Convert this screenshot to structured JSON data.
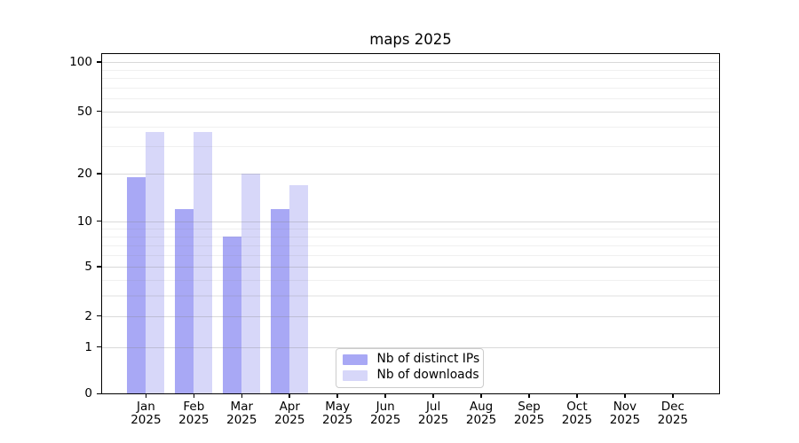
{
  "chart_data": {
    "type": "bar",
    "title": "maps 2025",
    "xlabel": "",
    "ylabel": "",
    "categories": [
      "Jan",
      "Feb",
      "Mar",
      "Apr",
      "May",
      "Jun",
      "Jul",
      "Aug",
      "Sep",
      "Oct",
      "Nov",
      "Dec"
    ],
    "x_tick_year": "2025",
    "series": [
      {
        "name": "Nb of distinct IPs",
        "color": "#a8a8f5",
        "values": [
          19,
          12,
          8,
          12,
          0,
          0,
          0,
          0,
          0,
          0,
          0,
          0
        ]
      },
      {
        "name": "Nb of downloads",
        "color": "#d7d7f9",
        "values": [
          37,
          37,
          20,
          17,
          0,
          0,
          0,
          0,
          0,
          0,
          0,
          0
        ]
      }
    ],
    "y_axis": {
      "scale": "log1p",
      "major_ticks": [
        0,
        1,
        2,
        5,
        10,
        20,
        50,
        100
      ],
      "minor_ticks": [
        3,
        4,
        6,
        7,
        8,
        9,
        30,
        40,
        60,
        70,
        80,
        90
      ],
      "range": [
        0,
        112
      ]
    },
    "grid": true,
    "legend_position": "lower center"
  },
  "legend": {
    "items": [
      "Nb of distinct IPs",
      "Nb of downloads"
    ]
  },
  "colors": {
    "background": "#ffffff",
    "bar_distinct_ips": "#a8a8f5",
    "bar_downloads": "#d7d7f9",
    "spine": "#000000",
    "major_grid": "rgba(128,128,128,0.30)",
    "minor_grid": "rgba(128,128,128,0.12)",
    "legend_border": "#cccccc",
    "text": "#000000"
  }
}
